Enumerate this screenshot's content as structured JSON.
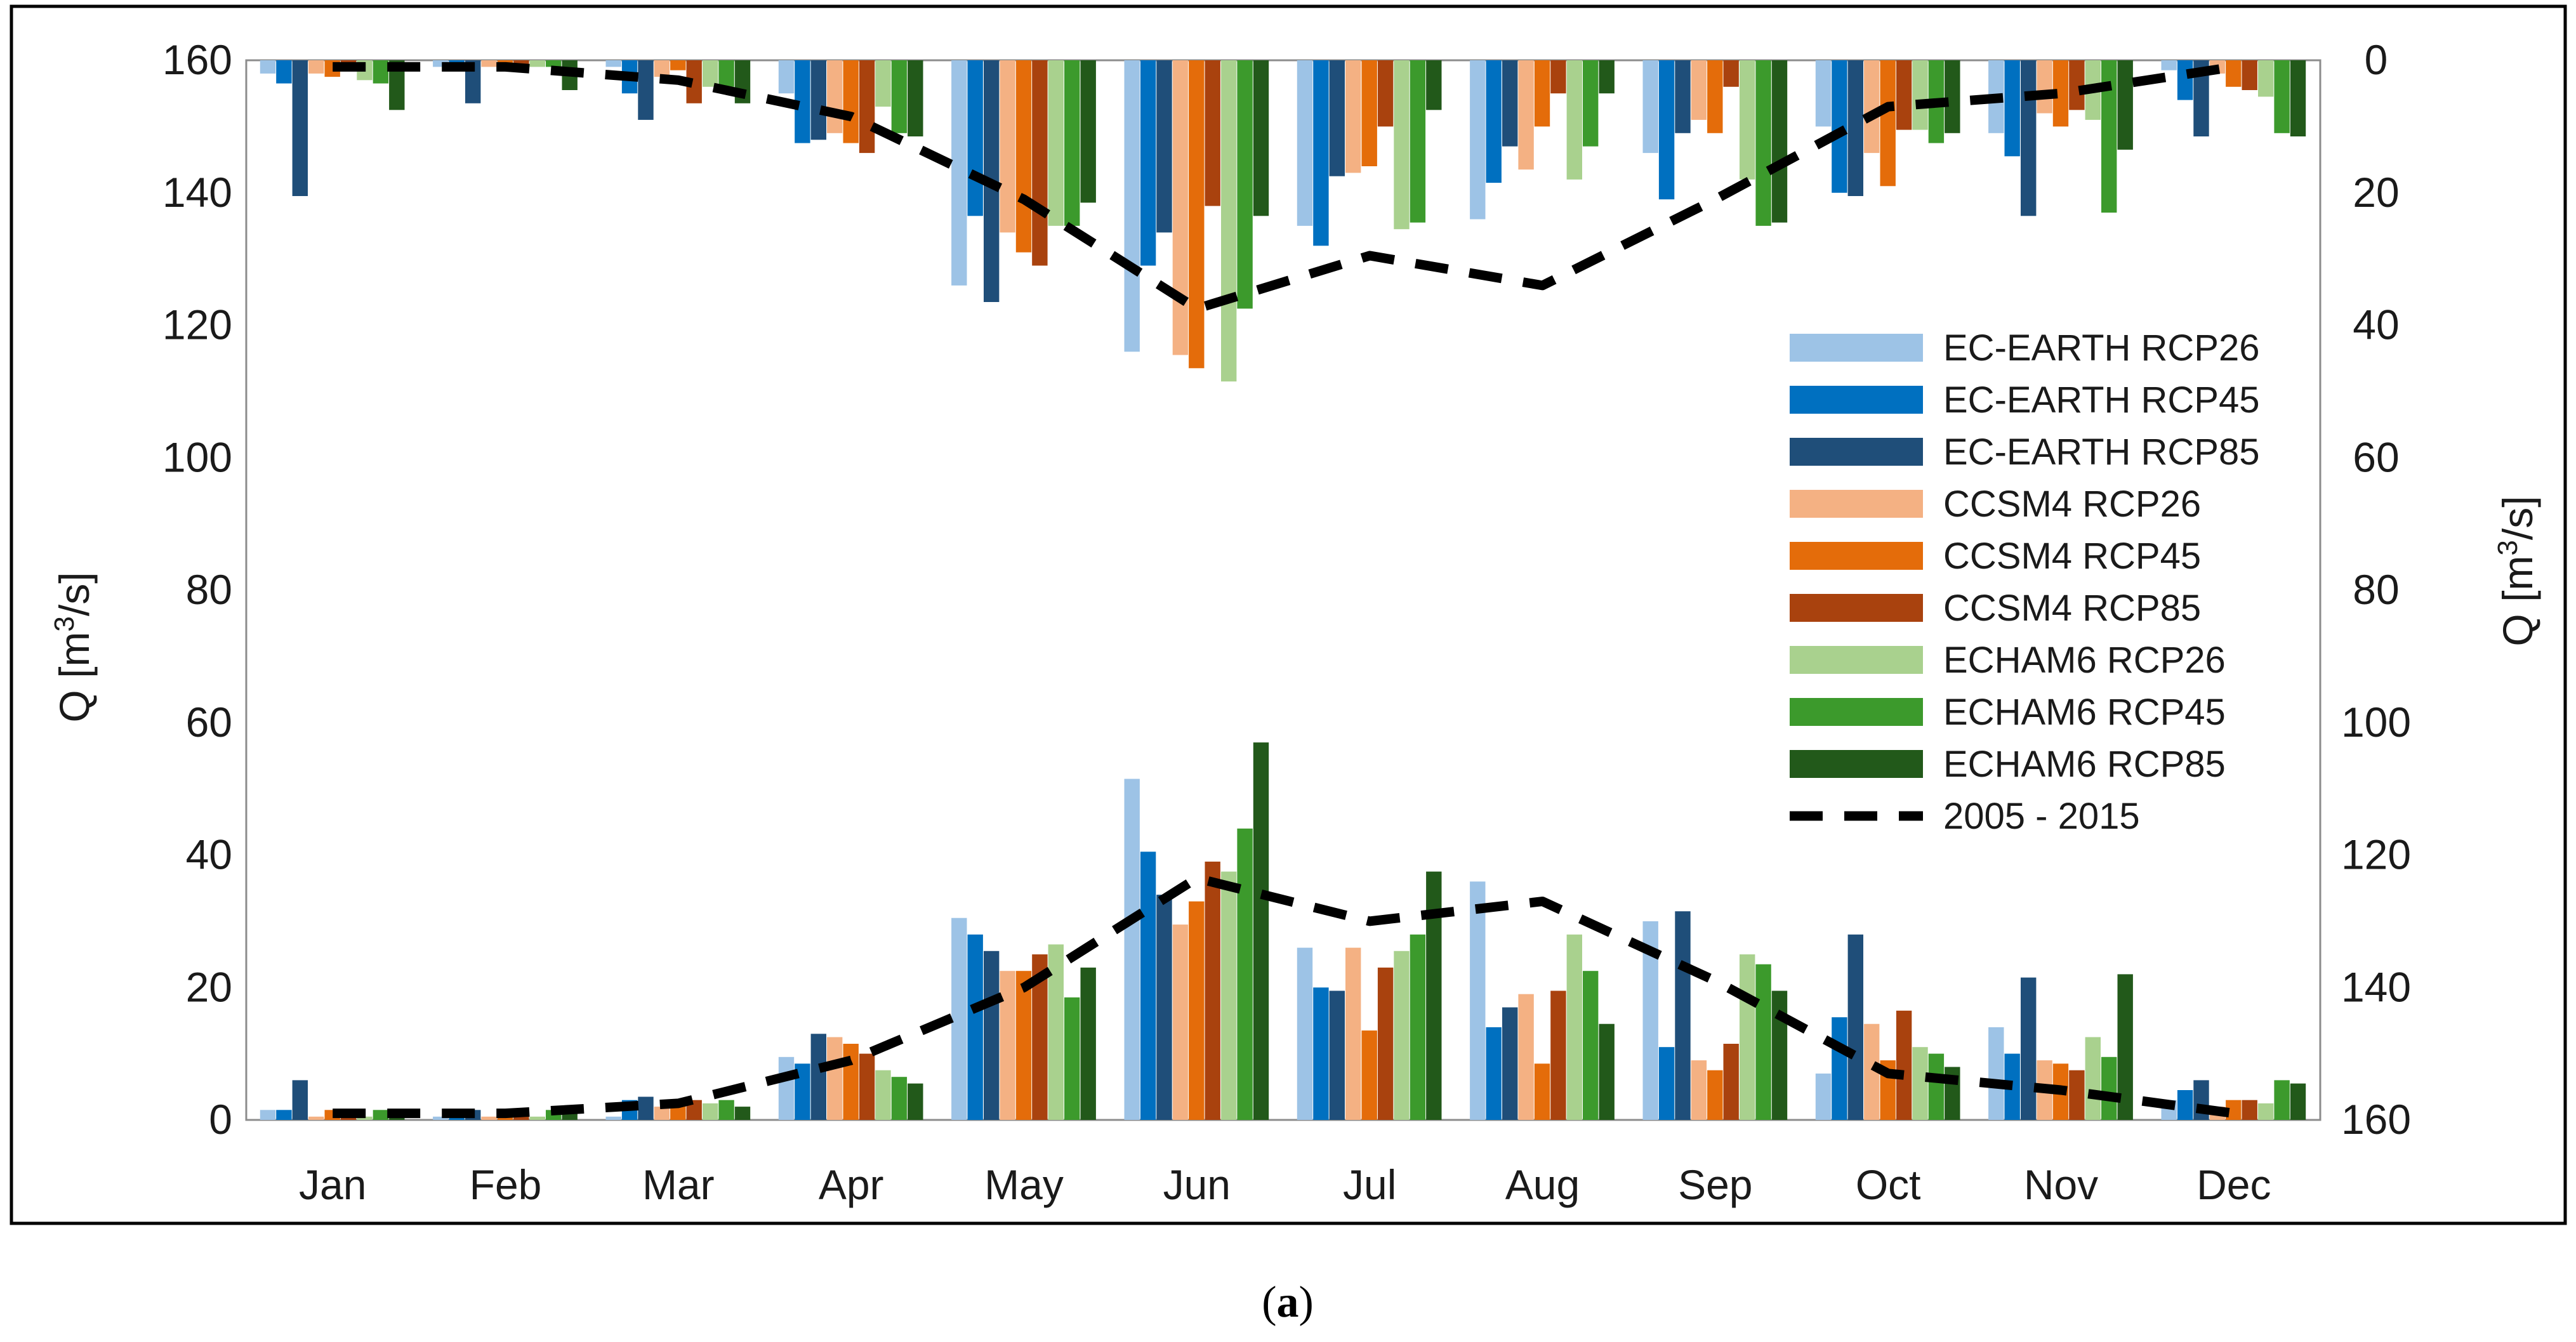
{
  "chart_data": {
    "type": "bar",
    "categories": [
      "Jan",
      "Feb",
      "Mar",
      "Apr",
      "May",
      "Jun",
      "Jul",
      "Aug",
      "Sep",
      "Oct",
      "Nov",
      "Dec"
    ],
    "y_left": {
      "label_prefix": "Q [m",
      "label_sup": "3",
      "label_suffix": "/s]",
      "range": [
        0,
        160
      ],
      "ticks": [
        "0",
        "20",
        "40",
        "60",
        "80",
        "100",
        "120",
        "140",
        "160"
      ]
    },
    "y_right": {
      "label_prefix": "Q [m",
      "label_sup": "3",
      "label_suffix": "/s]",
      "range": [
        0,
        160
      ],
      "inverted": true,
      "ticks": [
        "0",
        "20",
        "40",
        "60",
        "80",
        "100",
        "120",
        "140",
        "160"
      ]
    },
    "bottom_panel": {
      "axis": "left",
      "series": [
        {
          "name": "EC-EARTH RCP26",
          "color": "#9dc3e6",
          "values": [
            1.5,
            0.5,
            0.5,
            9.5,
            30.5,
            51.5,
            26,
            36,
            30,
            7,
            14,
            3
          ]
        },
        {
          "name": "EC-EARTH RCP45",
          "color": "#0070c0",
          "values": [
            1.5,
            1.5,
            3,
            8.5,
            28,
            40.5,
            20,
            14,
            11,
            15.5,
            10,
            4.5
          ]
        },
        {
          "name": "EC-EARTH RCP85",
          "color": "#1f4e79",
          "values": [
            6,
            1.5,
            3.5,
            13,
            25.5,
            34,
            19.5,
            17,
            31.5,
            28,
            21.5,
            6
          ]
        },
        {
          "name": "CCSM4 RCP26",
          "color": "#f4b183",
          "values": [
            0.5,
            0.5,
            2,
            12.5,
            22.5,
            29.5,
            26,
            19,
            9,
            14.5,
            9,
            2
          ]
        },
        {
          "name": "CCSM4 RCP45",
          "color": "#e46c0a",
          "values": [
            1.5,
            0.5,
            2.5,
            11.5,
            22.5,
            33,
            13.5,
            8.5,
            7.5,
            9,
            8.5,
            3
          ]
        },
        {
          "name": "CCSM4 RCP85",
          "color": "#a9420e",
          "values": [
            0.5,
            0.5,
            3,
            10,
            25,
            39,
            23,
            19.5,
            11.5,
            16.5,
            7.5,
            3
          ]
        },
        {
          "name": "ECHAM6 RCP26",
          "color": "#a9d18e",
          "values": [
            0.5,
            0.5,
            2.5,
            7.5,
            26.5,
            37.5,
            25.5,
            28,
            25,
            11,
            12.5,
            2.5
          ]
        },
        {
          "name": "ECHAM6 RCP45",
          "color": "#3c9a2c",
          "values": [
            1.5,
            1.5,
            3,
            6.5,
            18.5,
            44,
            28,
            22.5,
            23.5,
            10,
            9.5,
            6
          ]
        },
        {
          "name": "ECHAM6 RCP85",
          "color": "#22591a",
          "values": [
            1.5,
            1,
            2,
            5.5,
            23,
            57,
            37.5,
            14.5,
            19.5,
            8,
            22,
            5.5
          ]
        }
      ],
      "baseline": {
        "name": "2005 - 2015",
        "values": [
          1,
          1,
          2.5,
          9,
          20,
          36.5,
          30,
          33,
          21,
          7,
          4.5,
          1
        ]
      }
    },
    "top_panel": {
      "axis": "right",
      "series": [
        {
          "name": "EC-EARTH RCP26",
          "color": "#9dc3e6",
          "values": [
            2,
            1,
            1,
            5,
            34,
            44,
            25,
            24,
            14,
            10,
            11,
            1.5
          ]
        },
        {
          "name": "EC-EARTH RCP45",
          "color": "#0070c0",
          "values": [
            3.5,
            0.5,
            5,
            12.5,
            23.5,
            31,
            28,
            18.5,
            21,
            20,
            14.5,
            6
          ]
        },
        {
          "name": "EC-EARTH RCP85",
          "color": "#1f4e79",
          "values": [
            20.5,
            6.5,
            9,
            12,
            36.5,
            26,
            17.5,
            13,
            11,
            20.5,
            23.5,
            11.5
          ]
        },
        {
          "name": "CCSM4 RCP26",
          "color": "#f4b183",
          "values": [
            2,
            1,
            2.5,
            11,
            26,
            44.5,
            17,
            16.5,
            9,
            14,
            8,
            2
          ]
        },
        {
          "name": "CCSM4 RCP45",
          "color": "#e46c0a",
          "values": [
            2.5,
            1,
            1.5,
            12.5,
            29,
            46.5,
            16,
            10,
            11,
            19,
            10,
            4
          ]
        },
        {
          "name": "CCSM4 RCP85",
          "color": "#a9420e",
          "values": [
            1,
            1,
            6.5,
            14,
            31,
            22,
            10,
            5,
            4,
            10.5,
            7.5,
            4.5
          ]
        },
        {
          "name": "ECHAM6 RCP26",
          "color": "#a9d18e",
          "values": [
            3,
            1,
            4,
            7,
            25,
            48.5,
            25.5,
            18,
            18,
            10.5,
            9,
            5.5
          ]
        },
        {
          "name": "ECHAM6 RCP45",
          "color": "#3c9a2c",
          "values": [
            3.5,
            1,
            4,
            11,
            25,
            37.5,
            24.5,
            13,
            25,
            12.5,
            23,
            11
          ]
        },
        {
          "name": "ECHAM6 RCP85",
          "color": "#22591a",
          "values": [
            7.5,
            4.5,
            6.5,
            11.5,
            21.5,
            23.5,
            7.5,
            5,
            24.5,
            11,
            13.5,
            11.5
          ]
        }
      ],
      "baseline": {
        "name": "2005 - 2015",
        "values": [
          1,
          1,
          3,
          8.5,
          21,
          37.5,
          29.5,
          34,
          21,
          7,
          5,
          1
        ]
      }
    },
    "legend": {
      "placement": "right-center",
      "entries": [
        {
          "label": "EC-EARTH RCP26",
          "color": "#9dc3e6",
          "kind": "bar"
        },
        {
          "label": "EC-EARTH RCP45",
          "color": "#0070c0",
          "kind": "bar"
        },
        {
          "label": "EC-EARTH RCP85",
          "color": "#1f4e79",
          "kind": "bar"
        },
        {
          "label": "CCSM4 RCP26",
          "color": "#f4b183",
          "kind": "bar"
        },
        {
          "label": "CCSM4 RCP45",
          "color": "#e46c0a",
          "kind": "bar"
        },
        {
          "label": "CCSM4 RCP85",
          "color": "#a9420e",
          "kind": "bar"
        },
        {
          "label": "ECHAM6 RCP26",
          "color": "#a9d18e",
          "kind": "bar"
        },
        {
          "label": "ECHAM6 RCP45",
          "color": "#3c9a2c",
          "kind": "bar"
        },
        {
          "label": "ECHAM6 RCP85",
          "color": "#22591a",
          "kind": "bar"
        },
        {
          "label": "2005 - 2015",
          "color": "#000000",
          "kind": "dashed-line"
        }
      ]
    },
    "grid": false
  },
  "caption": {
    "open": "(",
    "letter": "a",
    "close": ")"
  }
}
